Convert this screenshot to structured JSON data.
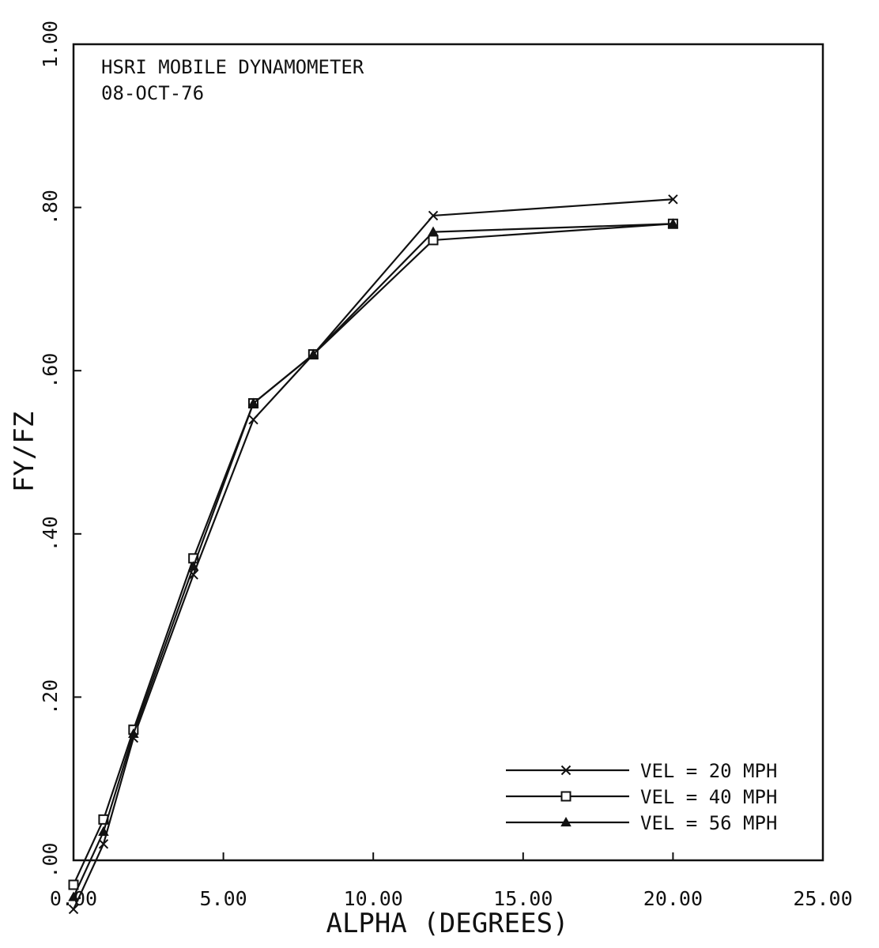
{
  "chart_data": {
    "type": "line",
    "title": "HSRI MOBILE DYNAMOMETER",
    "subtitle": "08-OCT-76",
    "xlabel": "ALPHA (DEGREES)",
    "ylabel": "FY/FZ",
    "xlim": [
      0,
      25
    ],
    "ylim": [
      0,
      1
    ],
    "x_ticks": [
      "0.00",
      "5.00",
      "10.00",
      "15.00",
      "20.00",
      "25.00"
    ],
    "y_ticks": [
      ".00",
      ".20",
      ".40",
      ".60",
      ".80",
      "1.00"
    ],
    "legend_position": "bottom-right",
    "grid": false,
    "series": [
      {
        "name": "VEL = 20 MPH",
        "marker": "x",
        "x": [
          0,
          1,
          2,
          4,
          6,
          8,
          12,
          20
        ],
        "y": [
          -0.06,
          0.02,
          0.15,
          0.35,
          0.54,
          0.62,
          0.79,
          0.81
        ]
      },
      {
        "name": "VEL = 40 MPH",
        "marker": "square",
        "x": [
          0,
          1,
          2,
          4,
          6,
          8,
          12,
          20
        ],
        "y": [
          -0.03,
          0.05,
          0.16,
          0.37,
          0.56,
          0.62,
          0.76,
          0.78
        ]
      },
      {
        "name": "VEL = 56 MPH",
        "marker": "triangle",
        "x": [
          0,
          1,
          2,
          4,
          6,
          8,
          12,
          20
        ],
        "y": [
          -0.045,
          0.035,
          0.155,
          0.36,
          0.56,
          0.62,
          0.77,
          0.78
        ]
      }
    ]
  }
}
